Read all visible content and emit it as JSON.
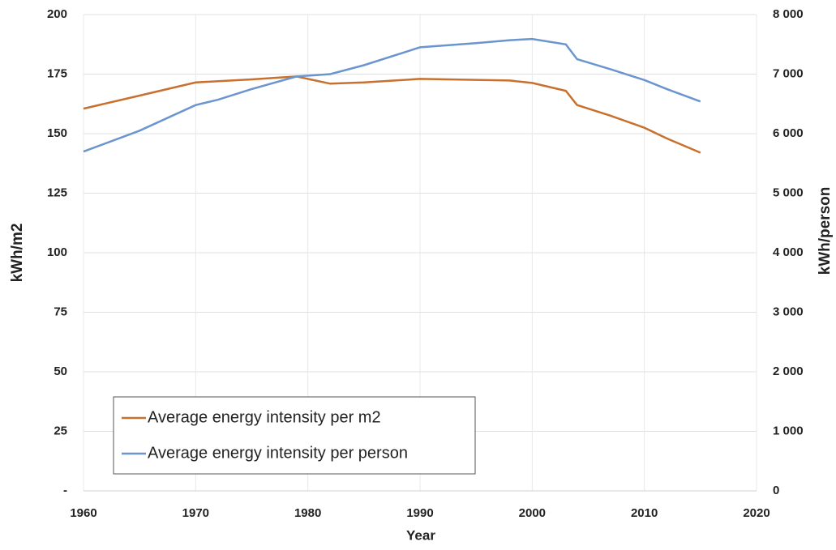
{
  "chart_data": {
    "type": "line",
    "x_label": "Year",
    "y_label": "kWh/m2",
    "y2_label": "kWh/person",
    "x": [
      1960,
      1965,
      1970,
      1972,
      1975,
      1979,
      1982,
      1985,
      1990,
      1995,
      1998,
      2000,
      2003,
      2004,
      2007,
      2010,
      2012,
      2015
    ],
    "series": [
      {
        "name": "Average energy intensity per m2",
        "color": "#c8702e",
        "axis": "y",
        "values": [
          160.5,
          166,
          171.5,
          172,
          172.8,
          174,
          171,
          171.5,
          173,
          172.6,
          172.3,
          171.3,
          168,
          162,
          157.5,
          152.5,
          148,
          142
        ]
      },
      {
        "name": "Average energy intensity per person",
        "color": "#6b95cf",
        "axis": "y2",
        "values": [
          5700,
          6050,
          6480,
          6570,
          6750,
          6960,
          7000,
          7150,
          7450,
          7520,
          7570,
          7590,
          7500,
          7250,
          7080,
          6900,
          6750,
          6540
        ]
      }
    ],
    "xlim": [
      1960,
      2020
    ],
    "xticks": [
      1960,
      1970,
      1980,
      1990,
      2000,
      2010,
      2020
    ],
    "ylim": [
      0,
      200
    ],
    "yticks": [
      {
        "value": 0,
        "label": "-"
      },
      25,
      50,
      75,
      100,
      125,
      150,
      175,
      200
    ],
    "y2lim": [
      0,
      8000
    ],
    "y2ticks": [
      0,
      {
        "value": 1000,
        "label": "1 000"
      },
      {
        "value": 2000,
        "label": "2 000"
      },
      {
        "value": 3000,
        "label": "3 000"
      },
      {
        "value": 4000,
        "label": "4 000"
      },
      {
        "value": 5000,
        "label": "5 000"
      },
      {
        "value": 6000,
        "label": "6 000"
      },
      {
        "value": 7000,
        "label": "7 000"
      },
      {
        "value": 8000,
        "label": "8 000"
      }
    ],
    "grid": true,
    "legend": "lower left"
  }
}
